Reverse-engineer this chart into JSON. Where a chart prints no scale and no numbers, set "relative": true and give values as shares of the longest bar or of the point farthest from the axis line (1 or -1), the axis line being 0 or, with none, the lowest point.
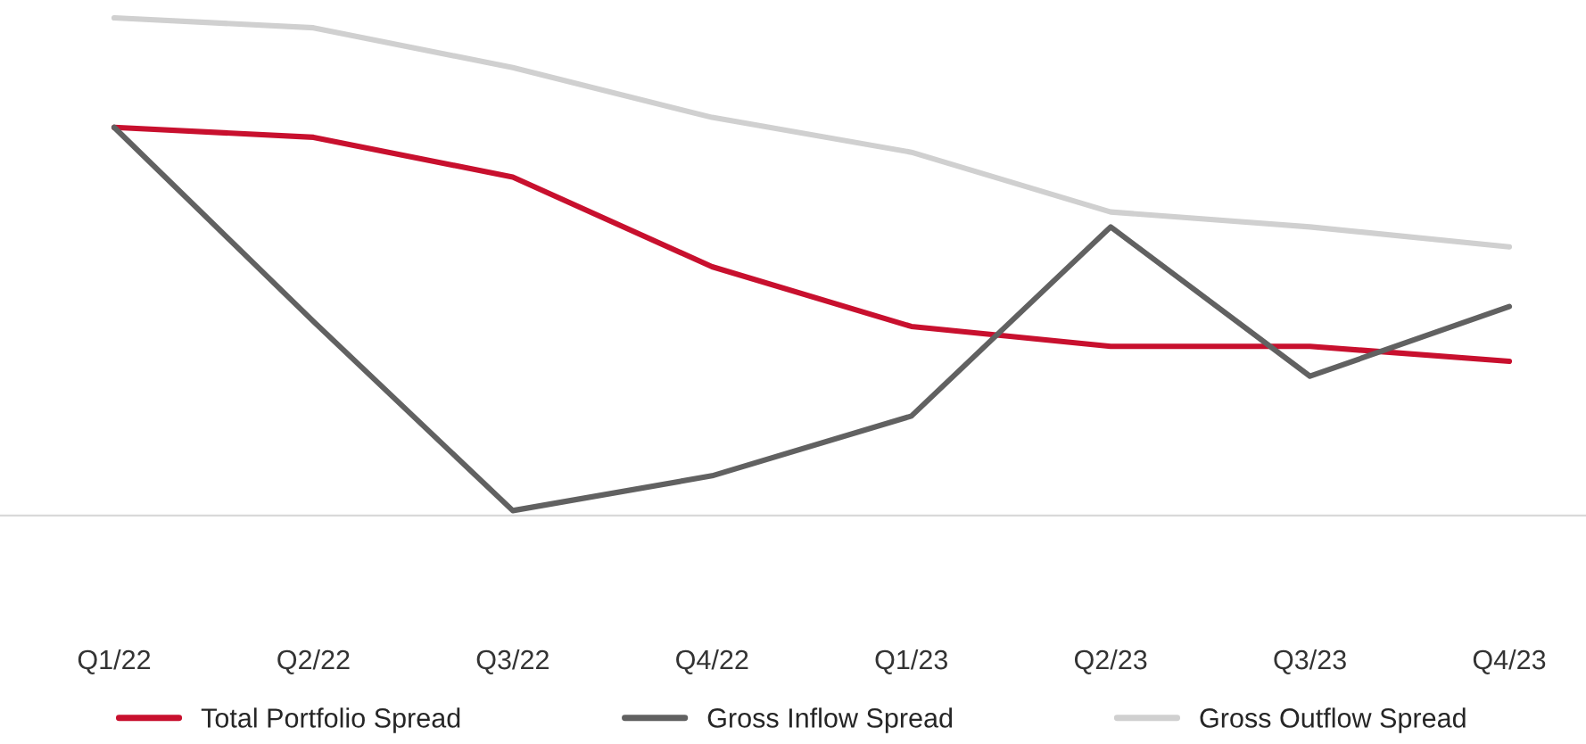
{
  "chart_data": {
    "type": "line",
    "relative": true,
    "categories": [
      "Q1/22",
      "Q2/22",
      "Q3/22",
      "Q4/22",
      "Q1/23",
      "Q2/23",
      "Q3/23",
      "Q4/23"
    ],
    "series": [
      {
        "name": "Total Portfolio Spread",
        "color": "#c8102e",
        "values": [
          0.78,
          0.76,
          0.68,
          0.5,
          0.38,
          0.34,
          0.34,
          0.31
        ]
      },
      {
        "name": "Gross Inflow Spread",
        "color": "#616161",
        "values": [
          0.78,
          0.39,
          0.01,
          0.08,
          0.2,
          0.58,
          0.28,
          0.42
        ]
      },
      {
        "name": "Gross Outflow Spread",
        "color": "#d0d0d0",
        "values": [
          1.0,
          0.98,
          0.9,
          0.8,
          0.73,
          0.61,
          0.58,
          0.54
        ]
      }
    ],
    "legend": "bottom",
    "grid": false,
    "marker": "none",
    "line_style": "solid"
  }
}
